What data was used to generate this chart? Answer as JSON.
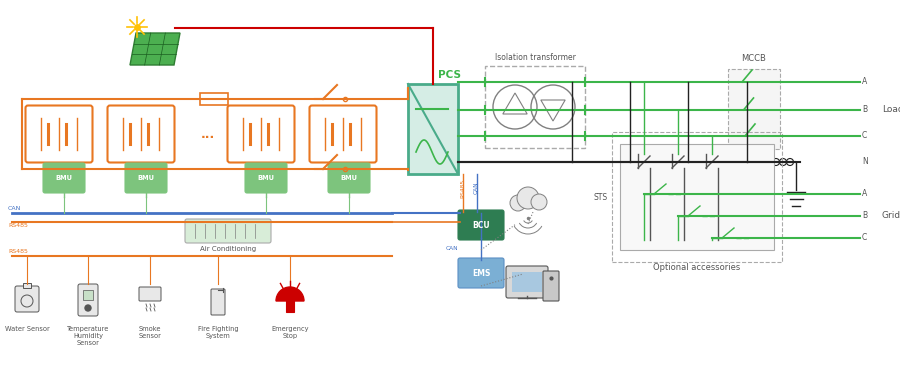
{
  "bg_color": "#ffffff",
  "orange": "#E87722",
  "bright_green": "#3CB54A",
  "bgreen": "#2E7D52",
  "blue": "#4472C4",
  "gray": "#808080",
  "light_gray": "#AAAAAA",
  "dark_gray": "#555555",
  "red": "#CC0000",
  "pcs_fill": "#D5EDE5",
  "pcs_edge": "#4AAB8A",
  "bcu_fill": "#2E7D52",
  "ems_fill": "#6B9CC5",
  "labels": {
    "pcs": "PCS",
    "bcu": "BCU",
    "ems": "EMS",
    "bmu": "BMU",
    "can": "CAN",
    "rs485": "RS485",
    "isolation_transformer": "Isolation transformer",
    "mccb": "MCCB",
    "sts": "STS",
    "optional": "Optional accessories",
    "load": "Load",
    "grid": "Grid",
    "air_cond": "Air Conditioning",
    "water": "Water Sensor",
    "temp": "Temperature\nHumidity\nSensor",
    "smoke": "Smoke\nSensor",
    "fire": "Fire Fighting\nSystem",
    "emergency": "Emergency\nStop",
    "A1": "A",
    "B1": "B",
    "C1": "C",
    "N1": "N",
    "A2": "A",
    "B2": "B",
    "C2": "C"
  }
}
